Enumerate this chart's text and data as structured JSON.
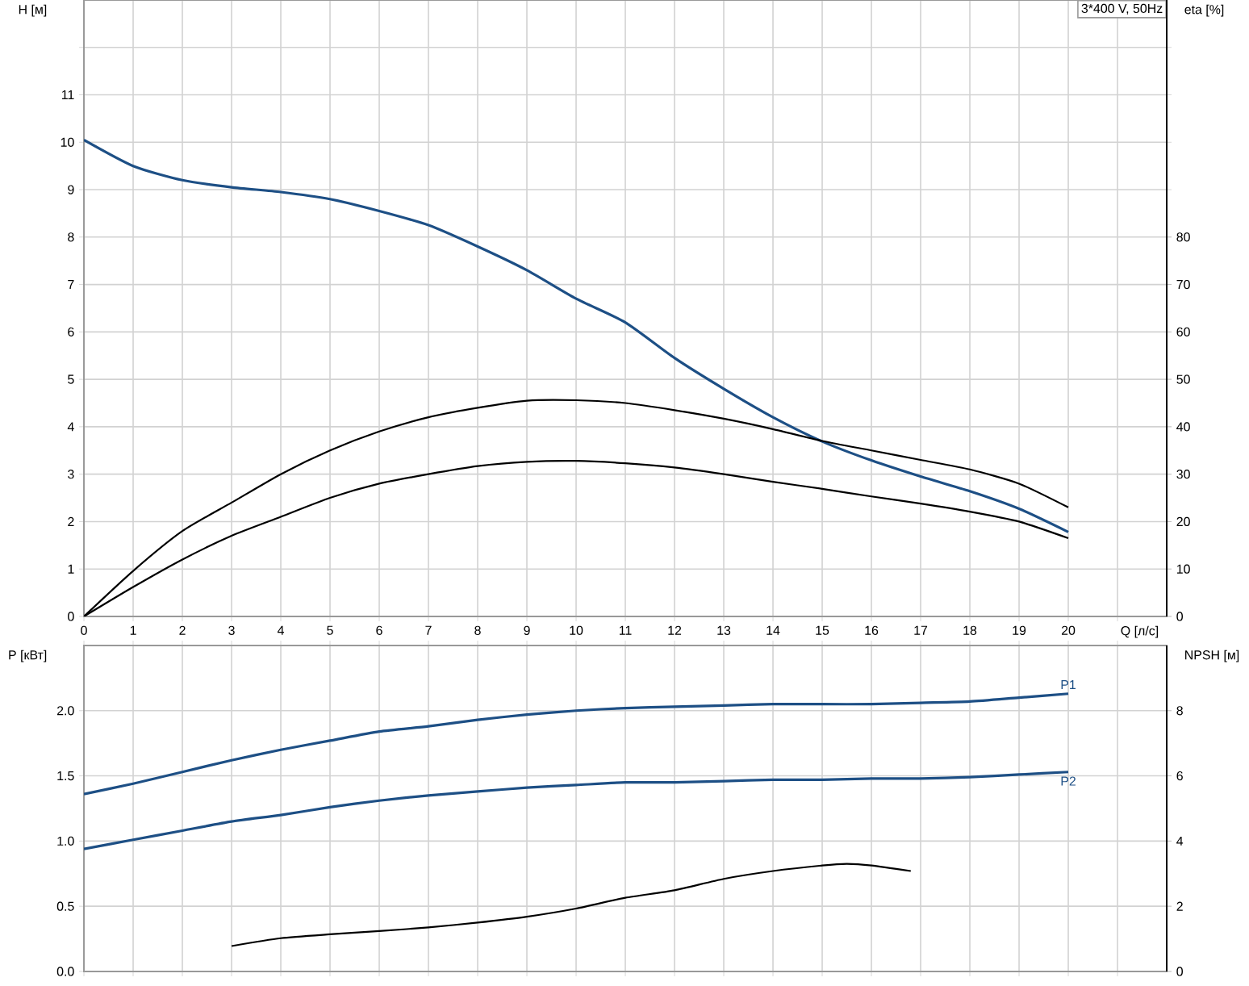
{
  "chart_data": [
    {
      "type": "line",
      "xlabel": "Q [л/с]",
      "ylabel": "H [м]",
      "y2label": "eta [%]",
      "annotations": [
        "3*400 V, 50Hz"
      ],
      "x": [
        0,
        1,
        2,
        3,
        4,
        5,
        6,
        7,
        8,
        9,
        10,
        11,
        12,
        13,
        14,
        15,
        16,
        17,
        18,
        19,
        20
      ],
      "xlim": [
        0,
        22
      ],
      "xticks": [
        0,
        1,
        2,
        3,
        4,
        5,
        6,
        7,
        8,
        9,
        10,
        11,
        12,
        13,
        14,
        15,
        16,
        17,
        18,
        19,
        20,
        {
          "value": 21,
          "label": null
        }
      ],
      "ylim": [
        0,
        13
      ],
      "yticks": [
        0,
        1,
        2,
        3,
        4,
        5,
        6,
        7,
        8,
        9,
        10,
        11,
        {
          "value": 12,
          "label": null
        }
      ],
      "y2lim": [
        0,
        130
      ],
      "y2ticks": [
        0,
        10,
        20,
        30,
        40,
        50,
        60,
        70,
        80
      ],
      "grid": true,
      "marker": "none",
      "series": [
        {
          "color": "#1d4f85",
          "values": [
            10.05,
            9.5,
            9.2,
            9.05,
            8.95,
            8.8,
            8.55,
            8.25,
            7.8,
            7.3,
            6.7,
            6.2,
            5.45,
            4.8,
            4.2,
            3.69,
            3.29,
            2.95,
            2.64,
            2.27,
            1.78
          ]
        },
        {
          "color": "#000000",
          "axis": "y2",
          "values": [
            0,
            9.6,
            18,
            24,
            30,
            35,
            39,
            42,
            44,
            45.5,
            45.6,
            45,
            43.5,
            41.7,
            39.5,
            37,
            35,
            33,
            31,
            28,
            23
          ]
        },
        {
          "color": "#000000",
          "axis": "y2",
          "values": [
            0,
            6.2,
            12,
            17,
            21,
            25,
            28,
            30,
            31.7,
            32.6,
            32.8,
            32.3,
            31.4,
            30,
            28.4,
            26.9,
            25.3,
            23.8,
            22.1,
            20,
            16.5
          ]
        }
      ]
    },
    {
      "type": "line",
      "ylabel": "P [кВт]",
      "y2label": "NPSH [м]",
      "x": [
        0,
        1,
        2,
        3,
        4,
        5,
        6,
        7,
        8,
        9,
        10,
        11,
        12,
        13,
        14,
        15,
        16,
        17,
        18,
        19,
        20
      ],
      "xlim": [
        0,
        22
      ],
      "xticks": [
        {
          "value": 0,
          "label": null
        },
        {
          "value": 1,
          "label": null
        },
        {
          "value": 2,
          "label": null
        },
        {
          "value": 3,
          "label": null
        },
        {
          "value": 4,
          "label": null
        },
        {
          "value": 5,
          "label": null
        },
        {
          "value": 6,
          "label": null
        },
        {
          "value": 7,
          "label": null
        },
        {
          "value": 8,
          "label": null
        },
        {
          "value": 9,
          "label": null
        },
        {
          "value": 10,
          "label": null
        },
        {
          "value": 11,
          "label": null
        },
        {
          "value": 12,
          "label": null
        },
        {
          "value": 13,
          "label": null
        },
        {
          "value": 14,
          "label": null
        },
        {
          "value": 15,
          "label": null
        },
        {
          "value": 16,
          "label": null
        },
        {
          "value": 17,
          "label": null
        },
        {
          "value": 18,
          "label": null
        },
        {
          "value": 19,
          "label": null
        },
        {
          "value": 20,
          "label": null
        },
        {
          "value": 21,
          "label": null
        }
      ],
      "ylim": [
        0,
        2.5
      ],
      "yticks": [
        {
          "value": 0,
          "label": "0.0"
        },
        {
          "value": 0.5,
          "label": "0.5"
        },
        {
          "value": 1,
          "label": "1.0"
        },
        {
          "value": 1.5,
          "label": "1.5"
        },
        {
          "value": 2,
          "label": "2.0"
        }
      ],
      "y2lim": [
        0,
        10
      ],
      "y2ticks": [
        0,
        2,
        4,
        6,
        8
      ],
      "grid": true,
      "marker": "none",
      "tick_labels": "y",
      "series": [
        {
          "name": "P1",
          "color": "#1d4f85",
          "values": [
            1.36,
            1.44,
            1.53,
            1.62,
            1.7,
            1.77,
            1.84,
            1.88,
            1.93,
            1.97,
            2.0,
            2.02,
            2.03,
            2.04,
            2.05,
            2.05,
            2.05,
            2.06,
            2.07,
            2.1,
            2.13
          ]
        },
        {
          "name": "P2",
          "color": "#1d4f85",
          "values": [
            0.94,
            1.01,
            1.08,
            1.15,
            1.2,
            1.26,
            1.31,
            1.35,
            1.38,
            1.41,
            1.43,
            1.45,
            1.45,
            1.46,
            1.47,
            1.47,
            1.48,
            1.48,
            1.49,
            1.51,
            1.53
          ]
        },
        {
          "color": "#000000",
          "axis": "y2",
          "x": [
            3,
            4,
            5,
            6,
            7,
            8,
            9,
            10,
            11,
            12,
            13,
            14,
            15,
            15.5,
            16,
            16.8
          ],
          "values": [
            0.78,
            1.02,
            1.14,
            1.24,
            1.35,
            1.5,
            1.68,
            1.93,
            2.26,
            2.49,
            2.84,
            3.08,
            3.25,
            3.3,
            3.25,
            3.08
          ]
        }
      ]
    }
  ]
}
